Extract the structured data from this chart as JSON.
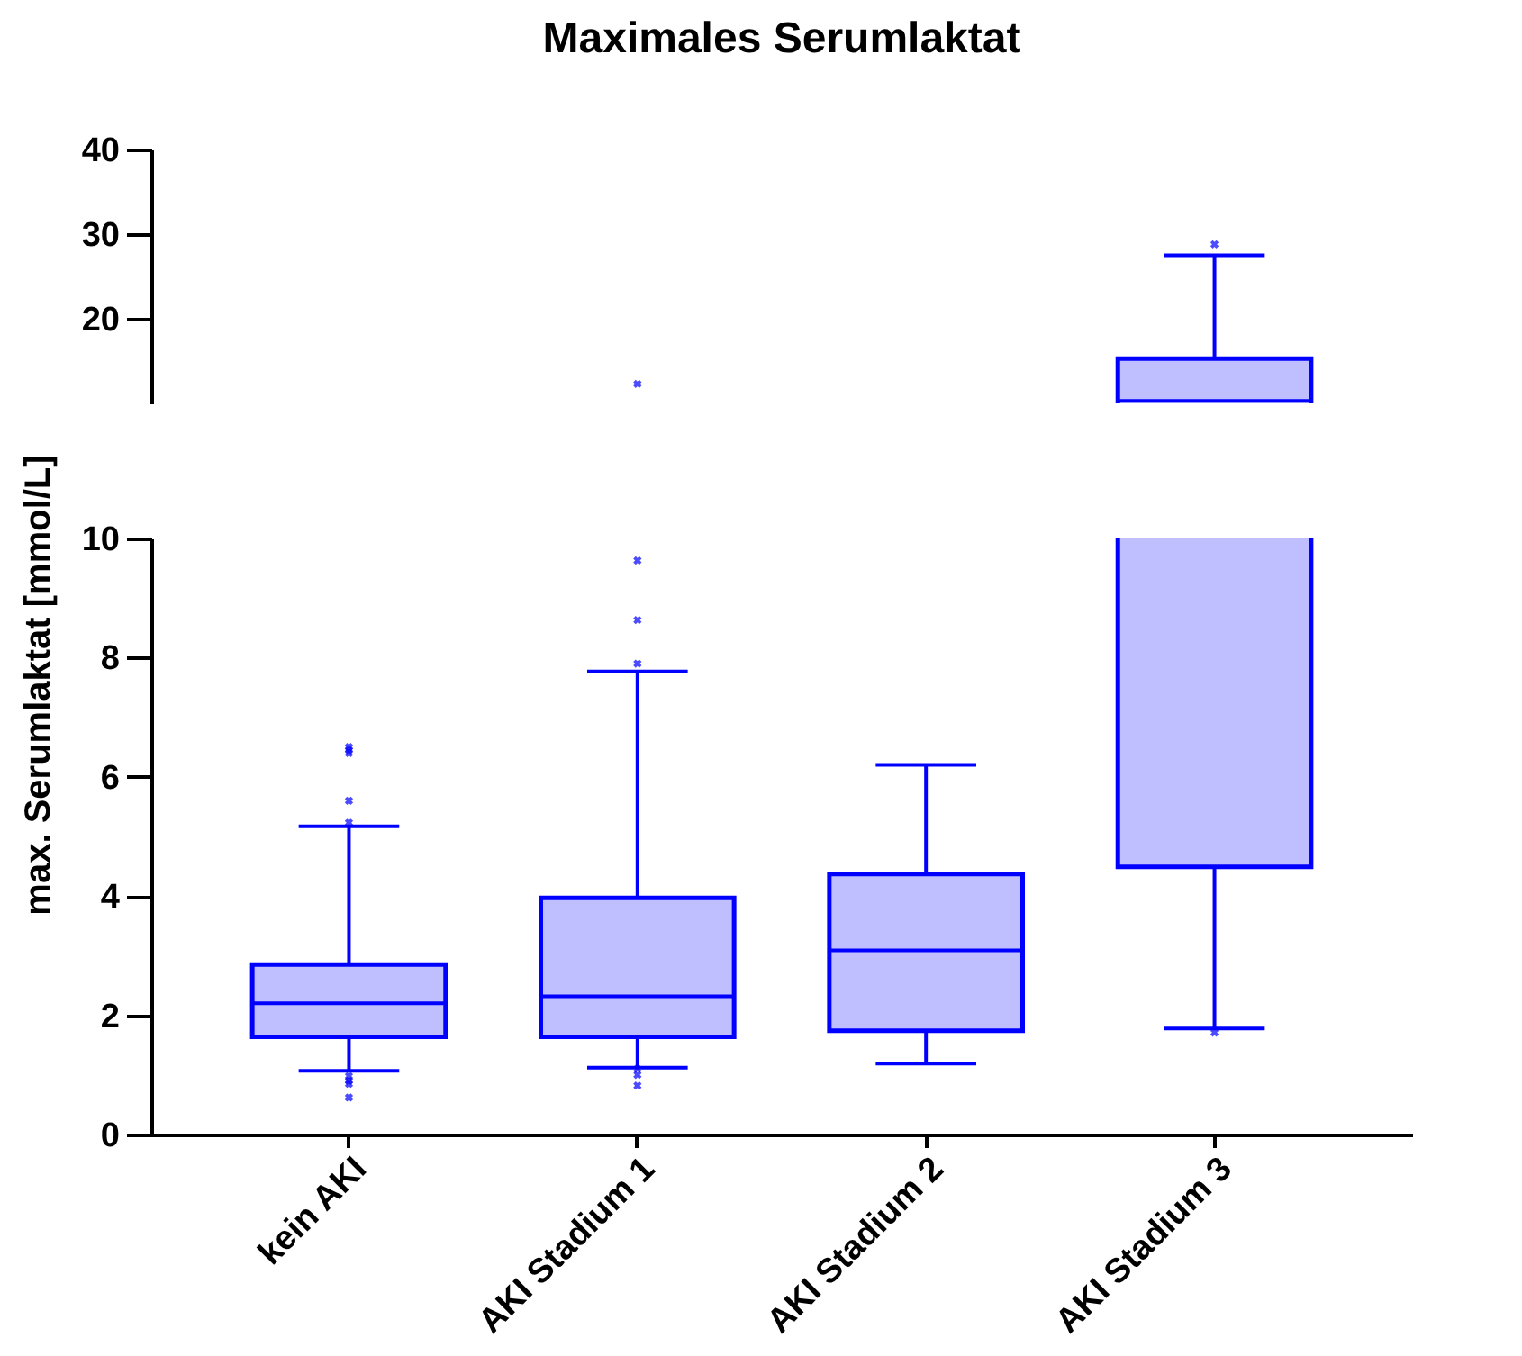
{
  "chart_data": [
    {
      "type": "box",
      "title": "Maximales Serumlaktat",
      "categories": [
        "kein AKI",
        "AKI Stadium 1",
        "AKI Stadium 2",
        "AKI Stadium 3"
      ],
      "ylim": [
        10,
        40
      ],
      "yticks": [
        20,
        30,
        40
      ],
      "tick_labels": "y",
      "grid": false,
      "series": [
        {
          "color": "#0000ff",
          "boxes": [
            null,
            null,
            null,
            {
              "low": 1.78,
              "q1": 4.49,
              "median": 10.3,
              "q3": 15.3,
              "high": 27.5,
              "outliers": [
                28.8
              ]
            }
          ]
        },
        {
          "type": "scatter",
          "color": "#0000ff",
          "marker": "cross",
          "x": [
            "AKI Stadium 1"
          ],
          "values": [
            12.3
          ]
        }
      ]
    },
    {
      "type": "box",
      "ylabel": "max. Serumlaktat [mmol/L]",
      "categories": [
        "kein AKI",
        "AKI Stadium 1",
        "AKI Stadium 2",
        "AKI Stadium 3"
      ],
      "ylim": [
        0,
        10
      ],
      "yticks": [
        0,
        2,
        4,
        6,
        8,
        10
      ],
      "grid": false,
      "series": [
        {
          "color": "#0000ff",
          "boxes": [
            {
              "low": 1.07,
              "q1": 1.64,
              "median": 2.2,
              "q3": 2.85,
              "high": 5.17,
              "outliers": [
                6.5,
                6.45,
                6.4,
                5.6,
                5.23,
                0.98,
                0.9,
                0.85,
                0.62
              ]
            },
            {
              "low": 1.12,
              "q1": 1.64,
              "median": 2.32,
              "q3": 3.97,
              "high": 7.77,
              "outliers": [
                9.63,
                8.63,
                7.9,
                1.1,
                1.0,
                0.82
              ]
            },
            {
              "low": 1.19,
              "q1": 1.74,
              "median": 3.09,
              "q3": 4.37,
              "high": 6.2
            },
            {
              "low": 1.78,
              "q1": 4.49,
              "median": 10.3,
              "q3": 15.3,
              "high": 27.5,
              "outliers": [
                1.71
              ]
            }
          ]
        }
      ]
    }
  ]
}
